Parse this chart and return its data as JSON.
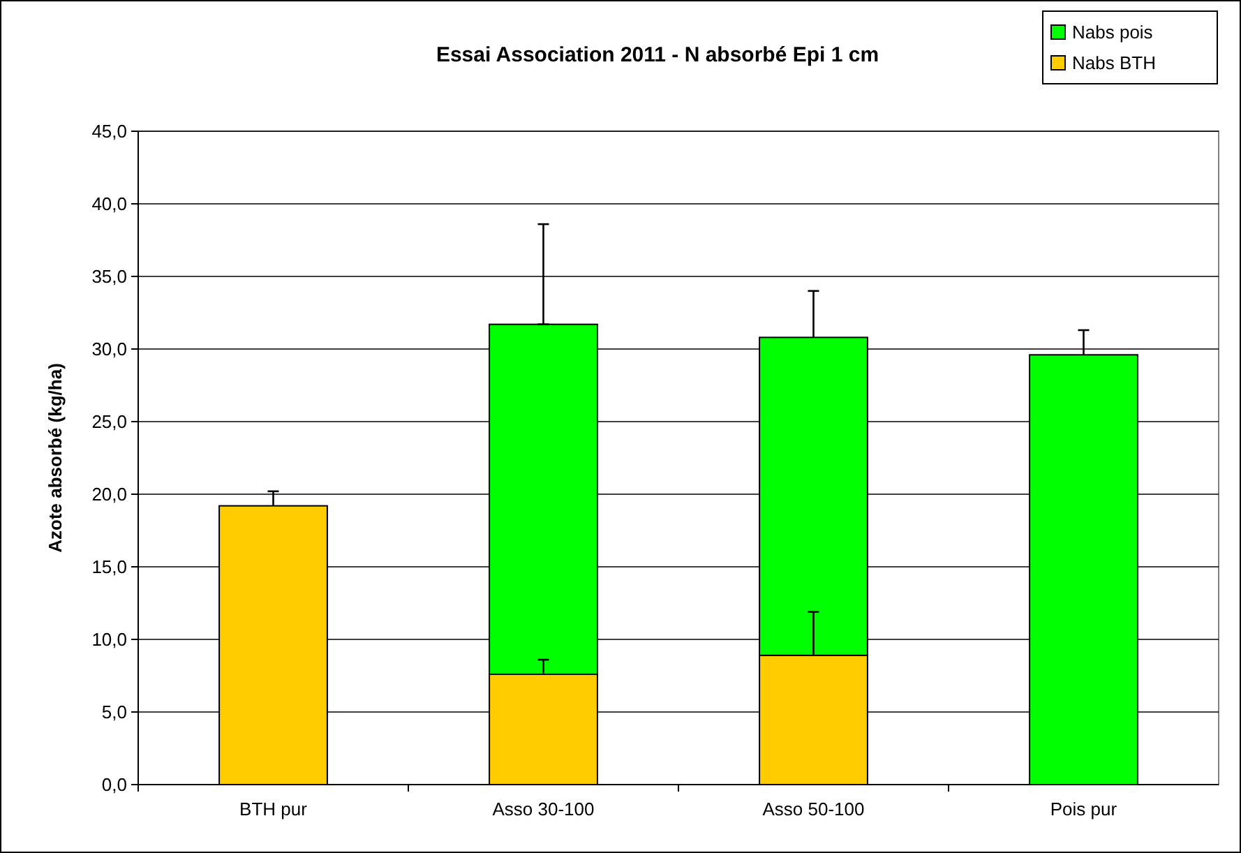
{
  "chart_data": {
    "type": "bar",
    "title": "Essai Association 2011 - N absorbé Epi 1 cm",
    "ylabel": "Azote absorbé (kg/ha)",
    "categories": [
      "BTH pur",
      "Asso 30-100",
      "Asso 50-100",
      "Pois pur"
    ],
    "stacked": true,
    "legend": "top right",
    "grid": "y",
    "ylim": [
      0,
      45
    ],
    "yticks": [
      {
        "value": 0,
        "label": "0,0"
      },
      {
        "value": 5,
        "label": "5,0"
      },
      {
        "value": 10,
        "label": "10,0"
      },
      {
        "value": 15,
        "label": "15,0"
      },
      {
        "value": 20,
        "label": "20,0"
      },
      {
        "value": 25,
        "label": "25,0"
      },
      {
        "value": 30,
        "label": "30,0"
      },
      {
        "value": 35,
        "label": "35,0"
      },
      {
        "value": 40,
        "label": "40,0"
      },
      {
        "value": 45,
        "label": "45,0"
      }
    ],
    "series": [
      {
        "name": "Nabs BTH",
        "color": "#ffcc00",
        "values": [
          19.2,
          7.6,
          8.9,
          null
        ],
        "errors": [
          [
            19.2,
            20.2
          ],
          [
            7.6,
            8.6
          ],
          [
            8.9,
            11.9
          ],
          null
        ]
      },
      {
        "name": "Nabs pois",
        "color": "#00ff00",
        "values": [
          null,
          24.1,
          21.9,
          29.6
        ],
        "errors": [
          null,
          [
            31.7,
            38.6
          ],
          [
            30.8,
            34.0
          ],
          [
            29.6,
            31.3
          ]
        ]
      }
    ]
  }
}
